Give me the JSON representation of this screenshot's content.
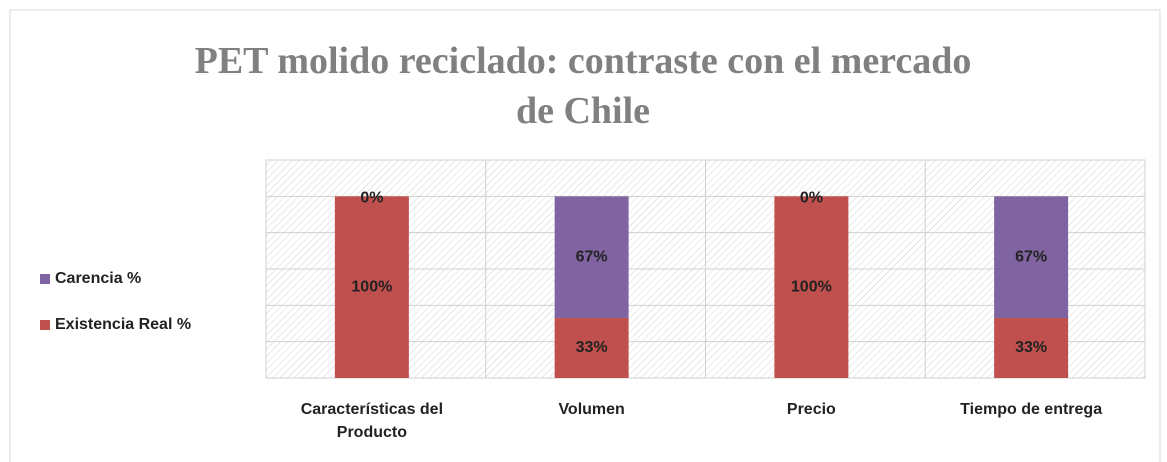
{
  "chart_data": {
    "type": "stacked_bar",
    "title": "PET molido reciclado: contraste con el mercado de Chile",
    "categories": [
      "Características del Producto",
      "Volumen",
      "Precio",
      "Tiempo de entrega"
    ],
    "series": [
      {
        "name": "Existencia Real %",
        "color": "#c0504d",
        "values": [
          100,
          33,
          100,
          33
        ],
        "value_labels": [
          "100%",
          "33%",
          "100%",
          "33%"
        ]
      },
      {
        "name": "Carencia %",
        "color": "#8064a2",
        "values": [
          0,
          67,
          0,
          67
        ],
        "value_labels": [
          "0%",
          "67%",
          "0%",
          "67%"
        ]
      }
    ],
    "ylim": [
      0,
      120
    ],
    "yticks": [
      0,
      20,
      40,
      60,
      80,
      100,
      120
    ],
    "grid": true,
    "legend": "left"
  }
}
